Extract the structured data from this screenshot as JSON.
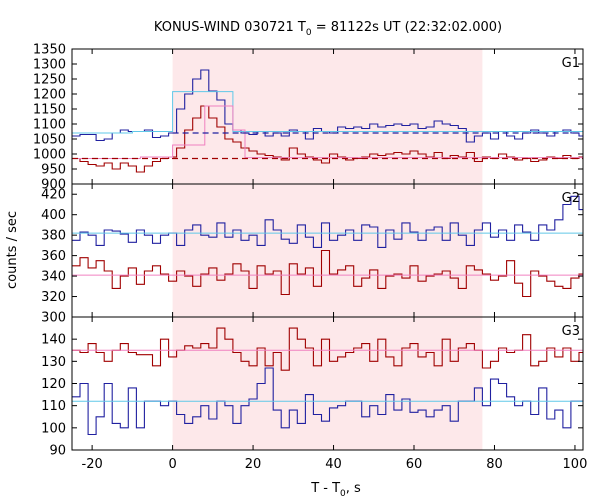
{
  "chart_data": {
    "type": "line",
    "title": "KONUS-WIND 030721 T",
    "title_sub": "0",
    "title_rest": " = 81122s UT (22:32:02.000)",
    "xlabel": "T - T",
    "xlabel_sub": "0",
    "xlabel_rest": ", s",
    "ylabel": "counts / sec",
    "xlim": [
      -25,
      102
    ],
    "x_ticks": [
      -20,
      0,
      20,
      40,
      60,
      80,
      100
    ],
    "x_tick_labels": [
      "-20",
      "0",
      "20",
      "40",
      "60",
      "80",
      "100"
    ],
    "shaded_interval": [
      0,
      77
    ],
    "colors": {
      "blue": "#2020a0",
      "red": "#a00000",
      "cyan": "#60c8e8",
      "pink": "#f080c0",
      "shade": "#fde8ea"
    },
    "panels": [
      {
        "label": "G1",
        "ylim": [
          900,
          1350
        ],
        "y_ticks": [
          900,
          950,
          1000,
          1050,
          1100,
          1150,
          1200,
          1250,
          1300,
          1350
        ],
        "y_tick_labels": [
          "900",
          "950",
          "1000",
          "1050",
          "1100",
          "1150",
          "1200",
          "1250",
          "1300",
          "1350"
        ],
        "series": [
          {
            "color_key": "blue",
            "style": "step",
            "x0": -25,
            "dx": 2,
            "values": [
              1060,
              1065,
              1065,
              1045,
              1050,
              1070,
              1080,
              1075,
              1075,
              1080,
              1055,
              1060,
              1070,
              1150,
              1200,
              1250,
              1280,
              1210,
              1180,
              1100,
              1080,
              1070,
              1065,
              1075,
              1060,
              1070,
              1060,
              1080,
              1075,
              1050,
              1085,
              1075,
              1070,
              1090,
              1085,
              1090,
              1085,
              1100,
              1090,
              1095,
              1100,
              1095,
              1100,
              1085,
              1090,
              1110,
              1100,
              1095,
              1085,
              1040,
              1060,
              1070,
              1050,
              1075,
              1060,
              1050,
              1070,
              1080,
              1070,
              1060,
              1075,
              1080,
              1070,
              1060
            ]
          },
          {
            "color_key": "red",
            "style": "step",
            "x0": -25,
            "dx": 2,
            "values": [
              985,
              975,
              965,
              960,
              970,
              950,
              970,
              960,
              940,
              960,
              975,
              985,
              990,
              1020,
              1080,
              1120,
              1160,
              1120,
              1090,
              1050,
              1040,
              1020,
              1010,
              1000,
              995,
              990,
              980,
              1020,
              1000,
              990,
              980,
              970,
              1000,
              990,
              980,
              985,
              990,
              1000,
              995,
              1000,
              1005,
              1000,
              1010,
              1000,
              990,
              1005,
              985,
              995,
              990,
              1005,
              975,
              990,
              985,
              1000,
              990,
              980,
              985,
              975,
              980,
              990,
              985,
              995,
              985,
              990
            ]
          },
          {
            "color_key": "cyan",
            "style": "segments",
            "segments": [
              [
                -25,
                -10,
                1070
              ],
              [
                -10,
                0,
                1075
              ],
              [
                0,
                7,
                1208
              ],
              [
                7,
                15,
                1208
              ],
              [
                15,
                77,
                1075
              ],
              [
                77,
                102,
                1075
              ]
            ]
          },
          {
            "color_key": "pink",
            "style": "segments",
            "segments": [
              [
                -25,
                -8,
                985
              ],
              [
                -8,
                0,
                990
              ],
              [
                0,
                8,
                1030
              ],
              [
                8,
                15,
                1160
              ],
              [
                15,
                18,
                1080
              ],
              [
                18,
                77,
                988
              ],
              [
                77,
                102,
                988
              ]
            ]
          },
          {
            "color_key": "blue",
            "style": "dashed",
            "y": 1070,
            "from": 0,
            "to": 102
          },
          {
            "color_key": "red",
            "style": "dashed",
            "y": 985,
            "from": -25,
            "to": 102
          }
        ]
      },
      {
        "label": "G2",
        "ylim": [
          300,
          430
        ],
        "y_ticks": [
          300,
          320,
          340,
          360,
          380,
          400,
          420
        ],
        "y_tick_labels": [
          "300",
          "320",
          "340",
          "360",
          "380",
          "400",
          "420"
        ],
        "series": [
          {
            "color_key": "blue",
            "style": "step",
            "x0": -25,
            "dx": 2,
            "values": [
              375,
              383,
              380,
              370,
              385,
              384,
              381,
              373,
              385,
              380,
              372,
              380,
              382,
              370,
              385,
              390,
              380,
              378,
              392,
              378,
              385,
              375,
              380,
              370,
              395,
              385,
              376,
              372,
              390,
              378,
              368,
              392,
              375,
              380,
              385,
              375,
              390,
              388,
              368,
              385,
              376,
              392,
              383,
              375,
              385,
              388,
              375,
              392,
              380,
              370,
              385,
              392,
              378,
              385,
              375,
              390,
              383,
              375,
              390,
              385,
              395,
              410,
              418,
              405
            ]
          },
          {
            "color_key": "red",
            "style": "step",
            "x0": -25,
            "dx": 2,
            "values": [
              350,
              358,
              348,
              355,
              345,
              328,
              340,
              348,
              332,
              345,
              350,
              342,
              335,
              345,
              340,
              330,
              342,
              348,
              336,
              342,
              352,
              345,
              328,
              350,
              342,
              345,
              322,
              352,
              342,
              348,
              330,
              365,
              342,
              346,
              350,
              330,
              338,
              346,
              328,
              340,
              342,
              338,
              350,
              335,
              340,
              342,
              345,
              338,
              328,
              350,
              346,
              342,
              336,
              340,
              355,
              333,
              320,
              345,
              340,
              335,
              330,
              328,
              338,
              342
            ]
          },
          {
            "color_key": "cyan",
            "style": "segments",
            "segments": [
              [
                -25,
                102,
                382
              ]
            ]
          },
          {
            "color_key": "pink",
            "style": "segments",
            "segments": [
              [
                -25,
                102,
                341
              ]
            ]
          }
        ]
      },
      {
        "label": "G3",
        "ylim": [
          90,
          150
        ],
        "y_ticks": [
          90,
          100,
          110,
          120,
          130,
          140
        ],
        "y_tick_labels": [
          "90",
          "100",
          "110",
          "120",
          "130",
          "140"
        ],
        "series": [
          {
            "color_key": "blue",
            "style": "step",
            "x0": -25,
            "dx": 2,
            "values": [
              114,
              120,
              97,
              105,
              120,
              102,
              100,
              118,
              100,
              112,
              112,
              110,
              112,
              106,
              102,
              105,
              110,
              104,
              112,
              110,
              102,
              110,
              113,
              120,
              127,
              108,
              100,
              108,
              102,
              115,
              106,
              103,
              109,
              110,
              112,
              112,
              105,
              110,
              106,
              115,
              108,
              113,
              107,
              108,
              105,
              108,
              110,
              103,
              112,
              112,
              118,
              110,
              122,
              120,
              114,
              110,
              112,
              106,
              118,
              104,
              108,
              100,
              112,
              112
            ]
          },
          {
            "color_key": "red",
            "style": "step",
            "x0": -25,
            "dx": 2,
            "values": [
              135,
              134,
              138,
              134,
              130,
              135,
              138,
              134,
              133,
              133,
              128,
              140,
              132,
              135,
              137,
              136,
              138,
              136,
              145,
              140,
              134,
              130,
              128,
              136,
              128,
              134,
              126,
              145,
              140,
              136,
              128,
              140,
              130,
              132,
              134,
              136,
              138,
              130,
              140,
              132,
              128,
              136,
              138,
              132,
              134,
              128,
              140,
              130,
              136,
              138,
              135,
              127,
              130,
              136,
              134,
              135,
              142,
              128,
              130,
              136,
              132,
              136,
              130,
              134
            ]
          },
          {
            "color_key": "cyan",
            "style": "segments",
            "segments": [
              [
                -25,
                102,
                112
              ]
            ]
          },
          {
            "color_key": "pink",
            "style": "segments",
            "segments": [
              [
                -25,
                102,
                135
              ]
            ]
          }
        ]
      }
    ]
  }
}
